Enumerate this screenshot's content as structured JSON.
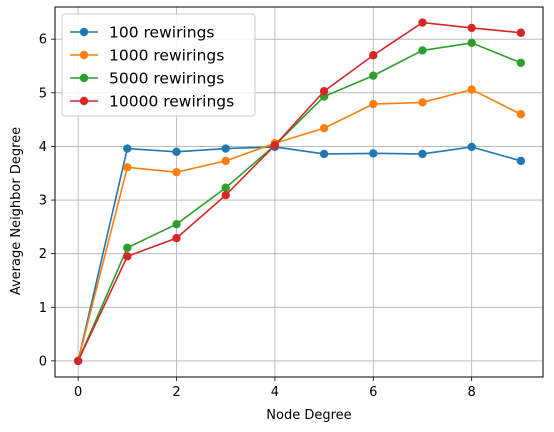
{
  "chart_data": {
    "type": "line",
    "title": "",
    "xlabel": "Node Degree",
    "ylabel": "Average Neighbor Degree",
    "x": [
      0,
      1,
      2,
      3,
      4,
      5,
      6,
      7,
      8,
      9
    ],
    "xlim": [
      -0.47,
      9.45
    ],
    "ylim": [
      -0.3,
      6.6
    ],
    "xticks": [
      0,
      2,
      4,
      6,
      8
    ],
    "yticks": [
      0,
      1,
      2,
      3,
      4,
      5,
      6
    ],
    "grid": true,
    "legend_position": "upper-left",
    "series": [
      {
        "name": "100 rewirings",
        "color": "#1f77b4",
        "values": [
          0,
          3.96,
          3.9,
          3.96,
          3.99,
          3.86,
          3.87,
          3.86,
          3.99,
          3.73
        ]
      },
      {
        "name": "1000 rewirings",
        "color": "#ff7f0e",
        "values": [
          0,
          3.61,
          3.52,
          3.73,
          4.06,
          4.34,
          4.79,
          4.82,
          5.06,
          4.6
        ]
      },
      {
        "name": "5000 rewirings",
        "color": "#2ca02c",
        "values": [
          0,
          2.11,
          2.55,
          3.23,
          4.02,
          4.93,
          5.32,
          5.79,
          5.93,
          5.56
        ]
      },
      {
        "name": "10000 rewirings",
        "color": "#d62728",
        "values": [
          0,
          1.95,
          2.29,
          3.09,
          4.02,
          5.03,
          5.7,
          6.31,
          6.21,
          6.12
        ]
      }
    ]
  }
}
